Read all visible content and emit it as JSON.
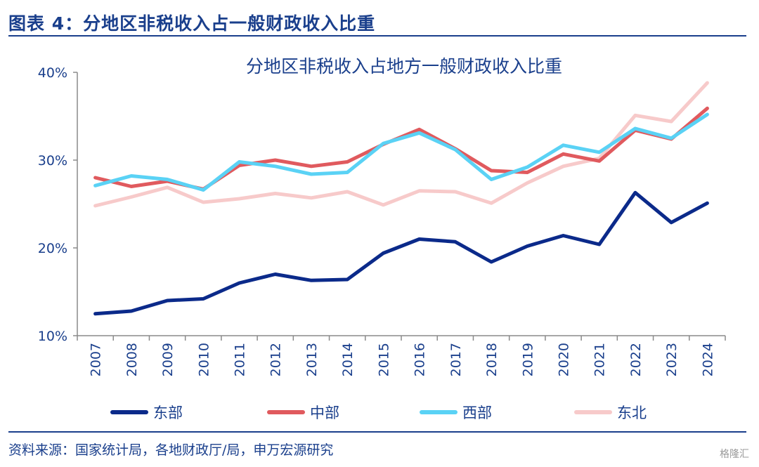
{
  "figure_title": "图表 4：分地区非税收入占一般财政收入比重",
  "source": "资料来源：国家统计局，各地财政厅/局，申万宏源研究",
  "watermark": "格隆汇",
  "chart_data": {
    "type": "line",
    "title": "分地区非税收入占地方一般财政收入比重",
    "xlabel": "",
    "ylabel": "",
    "x": [
      "2007",
      "2008",
      "2009",
      "2010",
      "2011",
      "2012",
      "2013",
      "2014",
      "2015",
      "2016",
      "2017",
      "2018",
      "2019",
      "2020",
      "2021",
      "2022",
      "2023",
      "2024"
    ],
    "ylim": [
      10,
      40
    ],
    "yticks": [
      10,
      20,
      30,
      40
    ],
    "ytick_labels": [
      "10%",
      "20%",
      "30%",
      "40%"
    ],
    "grid": false,
    "legend": "bottom",
    "series": [
      {
        "name": "东部",
        "color": "#0b2a8a",
        "values": [
          12.5,
          12.8,
          14.0,
          14.2,
          16.0,
          17.0,
          16.3,
          16.4,
          19.4,
          21.0,
          20.7,
          18.4,
          20.2,
          21.4,
          20.4,
          26.3,
          22.9,
          25.1
        ]
      },
      {
        "name": "中部",
        "color": "#e05a5e",
        "values": [
          28.0,
          27.0,
          27.6,
          26.7,
          29.4,
          30.0,
          29.3,
          29.8,
          31.8,
          33.5,
          31.3,
          28.8,
          28.6,
          30.7,
          29.9,
          33.4,
          32.4,
          35.9
        ]
      },
      {
        "name": "西部",
        "color": "#5ad2f5",
        "values": [
          27.1,
          28.2,
          27.8,
          26.6,
          29.8,
          29.3,
          28.4,
          28.6,
          31.9,
          33.1,
          31.2,
          27.8,
          29.2,
          31.7,
          30.9,
          33.6,
          32.5,
          35.2
        ]
      },
      {
        "name": "东北",
        "color": "#f7caca",
        "values": [
          24.8,
          25.8,
          26.9,
          25.2,
          25.6,
          26.2,
          25.7,
          26.4,
          24.9,
          26.5,
          26.4,
          25.1,
          27.4,
          29.3,
          30.2,
          35.1,
          34.4,
          38.8
        ]
      }
    ]
  }
}
